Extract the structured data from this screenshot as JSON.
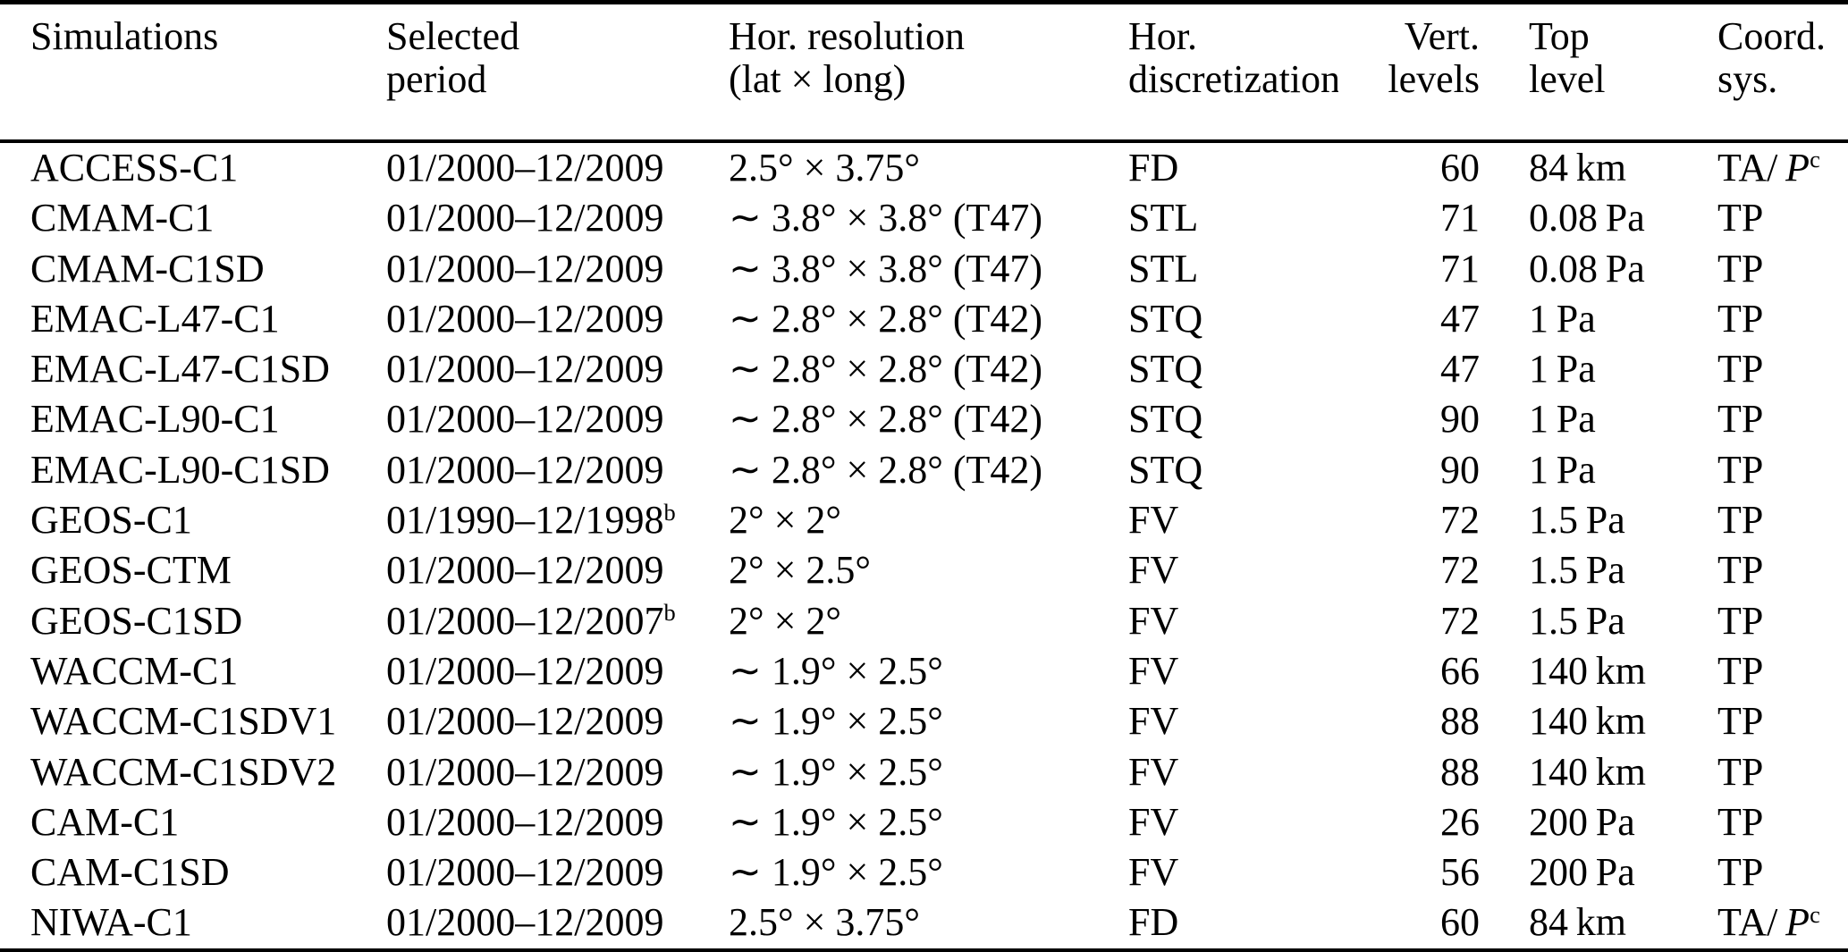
{
  "page": {
    "background_color": "#ffffff",
    "text_color": "#000000"
  },
  "table": {
    "columns": [
      {
        "id": "simulation",
        "line1": "Simulations",
        "line2": ""
      },
      {
        "id": "period",
        "line1": "Selected",
        "line2": "period"
      },
      {
        "id": "resolution",
        "line1": "Hor. resolution",
        "line2": "(lat × long)"
      },
      {
        "id": "discretization",
        "line1": "Hor.",
        "line2": "discretization"
      },
      {
        "id": "vert_levels",
        "line1": "Vert.",
        "line2": "levels"
      },
      {
        "id": "top_level",
        "line1": "Top",
        "line2": "level"
      },
      {
        "id": "coord_sys",
        "line1": "Coord.",
        "line2": "sys."
      }
    ],
    "rows": [
      {
        "simulation": "ACCESS-C1",
        "period": {
          "text": "01/2000–12/2009"
        },
        "resolution": "2.5° × 3.75°",
        "discretization": "FD",
        "vert_levels": "60",
        "top_level": "84 km",
        "coord_sys": {
          "text": "TA/ ",
          "italic": "P",
          "sup": "c"
        }
      },
      {
        "simulation": "CMAM-C1",
        "period": {
          "text": "01/2000–12/2009"
        },
        "resolution": "∼ 3.8° × 3.8° (T47)",
        "discretization": "STL",
        "vert_levels": "71",
        "top_level": "0.08 Pa",
        "coord_sys": {
          "text": "TP"
        }
      },
      {
        "simulation": "CMAM-C1SD",
        "period": {
          "text": "01/2000–12/2009"
        },
        "resolution": "∼ 3.8° × 3.8° (T47)",
        "discretization": "STL",
        "vert_levels": "71",
        "top_level": "0.08 Pa",
        "coord_sys": {
          "text": "TP"
        }
      },
      {
        "simulation": "EMAC-L47-C1",
        "period": {
          "text": "01/2000–12/2009"
        },
        "resolution": "∼ 2.8° × 2.8° (T42)",
        "discretization": "STQ",
        "vert_levels": "47",
        "top_level": "1 Pa",
        "coord_sys": {
          "text": "TP"
        }
      },
      {
        "simulation": "EMAC-L47-C1SD",
        "period": {
          "text": "01/2000–12/2009"
        },
        "resolution": "∼ 2.8° × 2.8° (T42)",
        "discretization": "STQ",
        "vert_levels": "47",
        "top_level": "1 Pa",
        "coord_sys": {
          "text": "TP"
        }
      },
      {
        "simulation": "EMAC-L90-C1",
        "period": {
          "text": "01/2000–12/2009"
        },
        "resolution": "∼ 2.8° × 2.8° (T42)",
        "discretization": "STQ",
        "vert_levels": "90",
        "top_level": "1 Pa",
        "coord_sys": {
          "text": "TP"
        }
      },
      {
        "simulation": "EMAC-L90-C1SD",
        "period": {
          "text": "01/2000–12/2009"
        },
        "resolution": "∼ 2.8° × 2.8° (T42)",
        "discretization": "STQ",
        "vert_levels": "90",
        "top_level": "1 Pa",
        "coord_sys": {
          "text": "TP"
        }
      },
      {
        "simulation": "GEOS-C1",
        "period": {
          "text": "01/1990–12/1998",
          "sup": "b"
        },
        "resolution": "2° × 2°",
        "discretization": "FV",
        "vert_levels": "72",
        "top_level": "1.5 Pa",
        "coord_sys": {
          "text": "TP"
        }
      },
      {
        "simulation": "GEOS-CTM",
        "period": {
          "text": "01/2000–12/2009"
        },
        "resolution": "2° × 2.5°",
        "discretization": "FV",
        "vert_levels": "72",
        "top_level": "1.5 Pa",
        "coord_sys": {
          "text": "TP"
        }
      },
      {
        "simulation": "GEOS-C1SD",
        "period": {
          "text": "01/2000–12/2007",
          "sup": "b"
        },
        "resolution": "2° × 2°",
        "discretization": "FV",
        "vert_levels": "72",
        "top_level": "1.5 Pa",
        "coord_sys": {
          "text": "TP"
        }
      },
      {
        "simulation": "WACCM-C1",
        "period": {
          "text": "01/2000–12/2009"
        },
        "resolution": "∼ 1.9° × 2.5°",
        "discretization": "FV",
        "vert_levels": "66",
        "top_level": "140 km",
        "coord_sys": {
          "text": "TP"
        }
      },
      {
        "simulation": "WACCM-C1SDV1",
        "period": {
          "text": "01/2000–12/2009"
        },
        "resolution": "∼ 1.9° × 2.5°",
        "discretization": "FV",
        "vert_levels": "88",
        "top_level": "140 km",
        "coord_sys": {
          "text": "TP"
        }
      },
      {
        "simulation": "WACCM-C1SDV2",
        "period": {
          "text": "01/2000–12/2009"
        },
        "resolution": "∼ 1.9° × 2.5°",
        "discretization": "FV",
        "vert_levels": "88",
        "top_level": "140 km",
        "coord_sys": {
          "text": "TP"
        }
      },
      {
        "simulation": "CAM-C1",
        "period": {
          "text": "01/2000–12/2009"
        },
        "resolution": "∼ 1.9° × 2.5°",
        "discretization": "FV",
        "vert_levels": "26",
        "top_level": "200 Pa",
        "coord_sys": {
          "text": "TP"
        }
      },
      {
        "simulation": "CAM-C1SD",
        "period": {
          "text": "01/2000–12/2009"
        },
        "resolution": "∼ 1.9° × 2.5°",
        "discretization": "FV",
        "vert_levels": "56",
        "top_level": "200 Pa",
        "coord_sys": {
          "text": "TP"
        }
      },
      {
        "simulation": "NIWA-C1",
        "period": {
          "text": "01/2000–12/2009"
        },
        "resolution": "2.5° × 3.75°",
        "discretization": "FD",
        "vert_levels": "60",
        "top_level": "84 km",
        "coord_sys": {
          "text": "TA/ ",
          "italic": "P",
          "sup": "c"
        }
      }
    ]
  }
}
